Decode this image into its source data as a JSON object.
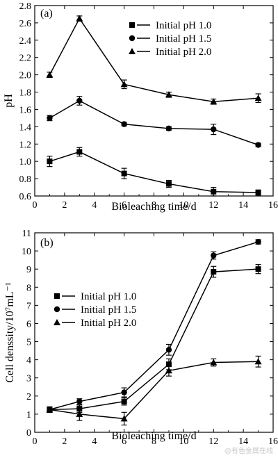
{
  "chart_data": [
    {
      "type": "line",
      "panel_label": "(a)",
      "xlabel": "Bioleaching time/d",
      "ylabel": "pH",
      "xlim": [
        0,
        16
      ],
      "ylim": [
        0.6,
        2.8
      ],
      "xticks": [
        0,
        2,
        4,
        6,
        8,
        10,
        12,
        14,
        16
      ],
      "yticks": [
        0.6,
        0.8,
        1.0,
        1.2,
        1.4,
        1.6,
        1.8,
        2.0,
        2.2,
        2.4,
        2.6,
        2.8
      ],
      "ytick_labels": [
        "0.6",
        "0.8",
        "1.0",
        "1.2",
        "1.4",
        "1.6",
        "1.8",
        "2.0",
        "2.2",
        "2.4",
        "2.6",
        "2.8"
      ],
      "grid": false,
      "legend_position": "top-right",
      "series": [
        {
          "name": "Initial pH 1.0",
          "marker": "square",
          "x": [
            1,
            3,
            6,
            9,
            12,
            15
          ],
          "y": [
            1.0,
            1.11,
            0.86,
            0.74,
            0.65,
            0.64
          ],
          "err": [
            0.06,
            0.05,
            0.06,
            0.04,
            0.05,
            0.03
          ]
        },
        {
          "name": "Initial pH 1.5",
          "marker": "circle",
          "x": [
            1,
            3,
            6,
            9,
            12,
            15
          ],
          "y": [
            1.5,
            1.7,
            1.43,
            1.38,
            1.37,
            1.19
          ],
          "err": [
            0.03,
            0.05,
            0.02,
            0.02,
            0.06,
            0.02
          ]
        },
        {
          "name": "Initial pH 2.0",
          "marker": "triangle",
          "x": [
            1,
            3,
            6,
            9,
            12,
            15
          ],
          "y": [
            2.0,
            2.65,
            1.89,
            1.77,
            1.69,
            1.73
          ],
          "err": [
            0.03,
            0.03,
            0.05,
            0.03,
            0.03,
            0.05
          ]
        }
      ]
    },
    {
      "type": "line",
      "panel_label": "(b)",
      "xlabel": "Bioleaching time/d",
      "ylabel": "Cell denssity/10⁷mL⁻¹",
      "xlim": [
        0,
        16
      ],
      "ylim": [
        0,
        11
      ],
      "xticks": [
        0,
        2,
        4,
        6,
        8,
        10,
        12,
        14,
        16
      ],
      "yticks": [
        0,
        1,
        2,
        3,
        4,
        5,
        6,
        7,
        8,
        9,
        10,
        11
      ],
      "ytick_labels": [
        "0",
        "1",
        "2",
        "3",
        "4",
        "5",
        "6",
        "7",
        "8",
        "9",
        "10",
        "11"
      ],
      "grid": false,
      "legend_position": "center-left",
      "series": [
        {
          "name": "Initial pH 1.0",
          "marker": "square",
          "x": [
            1,
            3,
            6,
            9,
            12,
            15
          ],
          "y": [
            1.25,
            1.3,
            1.7,
            3.75,
            8.85,
            9.0
          ],
          "err": [
            0.15,
            0.2,
            0.2,
            0.3,
            0.3,
            0.25
          ]
        },
        {
          "name": "Initial pH 1.5",
          "marker": "circle",
          "x": [
            1,
            3,
            6,
            9,
            12,
            15
          ],
          "y": [
            1.25,
            1.7,
            2.2,
            4.55,
            9.75,
            10.5
          ],
          "err": [
            0.15,
            0.15,
            0.25,
            0.3,
            0.2,
            0.12
          ]
        },
        {
          "name": "Initial pH 2.0",
          "marker": "triangle",
          "x": [
            1,
            3,
            6,
            9,
            12,
            15
          ],
          "y": [
            1.25,
            1.0,
            0.75,
            3.4,
            3.85,
            3.9
          ],
          "err": [
            0.15,
            0.35,
            0.35,
            0.3,
            0.2,
            0.3
          ]
        }
      ]
    }
  ],
  "watermark": "@有色金属在线"
}
